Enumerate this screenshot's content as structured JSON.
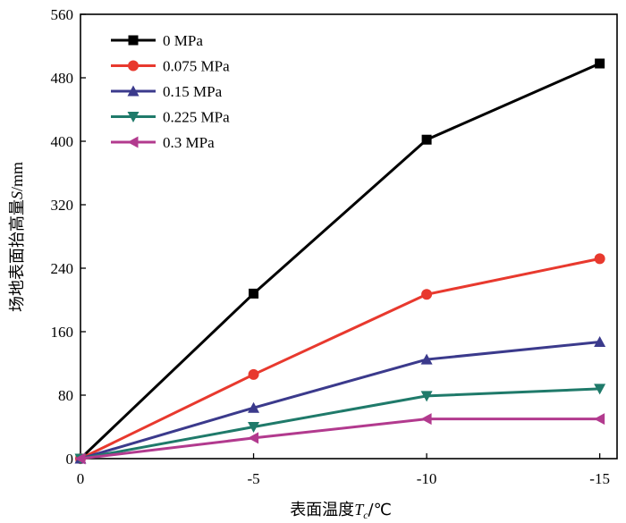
{
  "chart_data": {
    "type": "line",
    "xlabel": "表面温度",
    "xlabel_var": "T",
    "xlabel_sub": "c",
    "xlabel_unit": "/℃",
    "ylabel": "场地表面抬高量",
    "ylabel_var": "S",
    "ylabel_unit": "/mm",
    "x": [
      0,
      -5,
      -10,
      -15
    ],
    "x_tick_labels": [
      "0",
      "-5",
      "-10",
      "-15"
    ],
    "xlim": [
      0,
      -15.5
    ],
    "ylim": [
      0,
      560
    ],
    "y_ticks": [
      0,
      80,
      160,
      240,
      320,
      400,
      480,
      560
    ],
    "grid": false,
    "legend_position": "top-left",
    "series": [
      {
        "name": "0 MPa",
        "marker": "square",
        "color": "#000000",
        "values": [
          0,
          208,
          402,
          498
        ]
      },
      {
        "name": "0.075 MPa",
        "marker": "circle",
        "color": "#e8392e",
        "values": [
          0,
          106,
          207,
          252
        ]
      },
      {
        "name": "0.15 MPa",
        "marker": "triangle-up",
        "color": "#3b3a8c",
        "values": [
          0,
          64,
          125,
          147
        ]
      },
      {
        "name": "0.225 MPa",
        "marker": "triangle-down",
        "color": "#1f7a6a",
        "values": [
          0,
          40,
          79,
          88
        ]
      },
      {
        "name": "0.3 MPa",
        "marker": "triangle-left",
        "color": "#b23a8e",
        "values": [
          0,
          26,
          50,
          50
        ]
      }
    ]
  }
}
